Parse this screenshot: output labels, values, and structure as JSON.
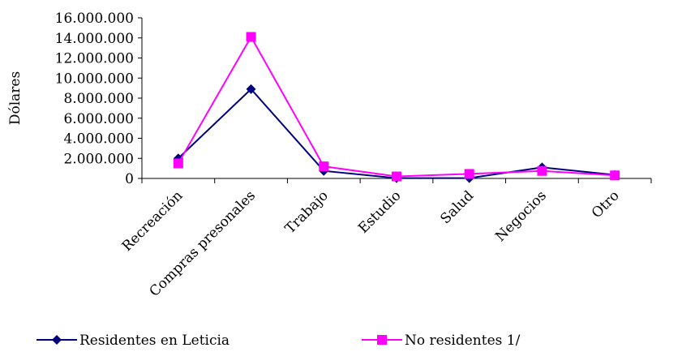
{
  "chart_data": {
    "type": "line",
    "title": "",
    "xlabel": "",
    "ylabel": "Dólares",
    "ylim": [
      0,
      16000000
    ],
    "yticks": [
      0,
      2000000,
      4000000,
      6000000,
      8000000,
      10000000,
      12000000,
      14000000,
      16000000
    ],
    "ytick_labels": [
      "0",
      "2.000.000",
      "4.000.000",
      "6.000.000",
      "8.000.000",
      "10.000.000",
      "12.000.000",
      "14.000.000",
      "16.000.000"
    ],
    "categories": [
      "Recreación",
      "Compras presonales",
      "Trabajo",
      "Estudio",
      "Salud",
      "Negocios",
      "Otro"
    ],
    "grid": false,
    "legend_position": "bottom",
    "series": [
      {
        "name": "Residentes en Leticia",
        "color": "#000080",
        "marker": "diamond",
        "values": [
          2000000,
          8900000,
          750000,
          30000,
          30000,
          1100000,
          350000
        ]
      },
      {
        "name": "No residentes 1/",
        "color": "#FF00FF",
        "marker": "square",
        "values": [
          1500000,
          14100000,
          1200000,
          200000,
          450000,
          750000,
          300000
        ]
      }
    ]
  }
}
